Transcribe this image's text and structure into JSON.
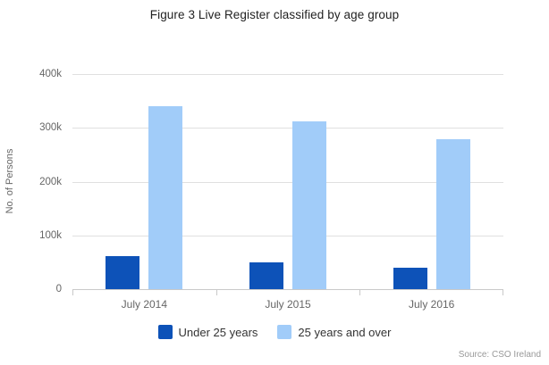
{
  "title": "Figure 3 Live Register classified by age group",
  "source_text": "Source: CSO Ireland",
  "chart_data": {
    "type": "bar",
    "title": "Figure 3 Live Register classified by age group",
    "categories": [
      "July 2014",
      "July 2015",
      "July 2016"
    ],
    "series": [
      {
        "name": "Under 25 years",
        "color": "#0d52b8",
        "values": [
          61000,
          50000,
          40000
        ]
      },
      {
        "name": "25 years and over",
        "color": "#a1ccf9",
        "values": [
          340000,
          312000,
          279000
        ]
      }
    ],
    "xlabel": "",
    "ylabel": "No. of Persons",
    "ylim": [
      0,
      400000
    ],
    "yticks": [
      {
        "value": 0,
        "label": "0"
      },
      {
        "value": 100000,
        "label": "100k"
      },
      {
        "value": 200000,
        "label": "200k"
      },
      {
        "value": 300000,
        "label": "300k"
      },
      {
        "value": 400000,
        "label": "400k"
      }
    ],
    "grid": true,
    "legend_position": "bottom"
  },
  "colors": {
    "grid": "#e0e0e0",
    "axis": "#c9c9c9",
    "background": "#ffffff"
  }
}
